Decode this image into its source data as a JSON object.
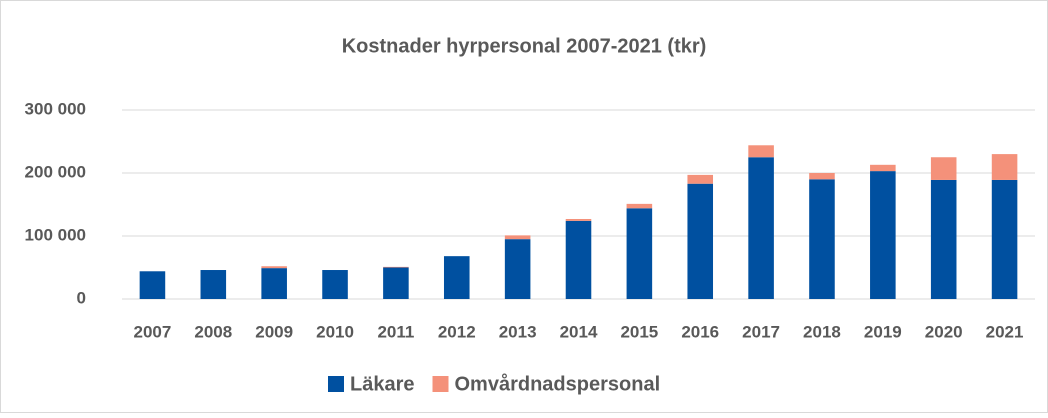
{
  "chart_data": {
    "type": "bar",
    "stacked": true,
    "title": "Kostnader hyrpersonal 2007-2021 (tkr)",
    "categories": [
      "2007",
      "2008",
      "2009",
      "2010",
      "2011",
      "2012",
      "2013",
      "2014",
      "2015",
      "2016",
      "2017",
      "2018",
      "2019",
      "2020",
      "2021"
    ],
    "series": [
      {
        "name": "Läkare",
        "color": "#0050a0",
        "values": [
          44000,
          46000,
          49000,
          46000,
          50000,
          68000,
          95000,
          124000,
          144000,
          183000,
          225000,
          190000,
          203000,
          189000,
          189000
        ]
      },
      {
        "name": "Omvårdnadspersonal",
        "color": "#f4917a",
        "values": [
          0,
          0,
          3000,
          0,
          1000,
          0,
          6000,
          3000,
          7000,
          14000,
          19000,
          10000,
          10000,
          36000,
          41000
        ]
      }
    ],
    "ylim": [
      0,
      300000
    ],
    "yticks": [
      0,
      {
        "value": 100000,
        "label": "100 000"
      },
      {
        "value": 200000,
        "label": "200 000"
      },
      {
        "value": 300000,
        "label": "300 000"
      }
    ],
    "grid": true,
    "legend": "bottom"
  }
}
